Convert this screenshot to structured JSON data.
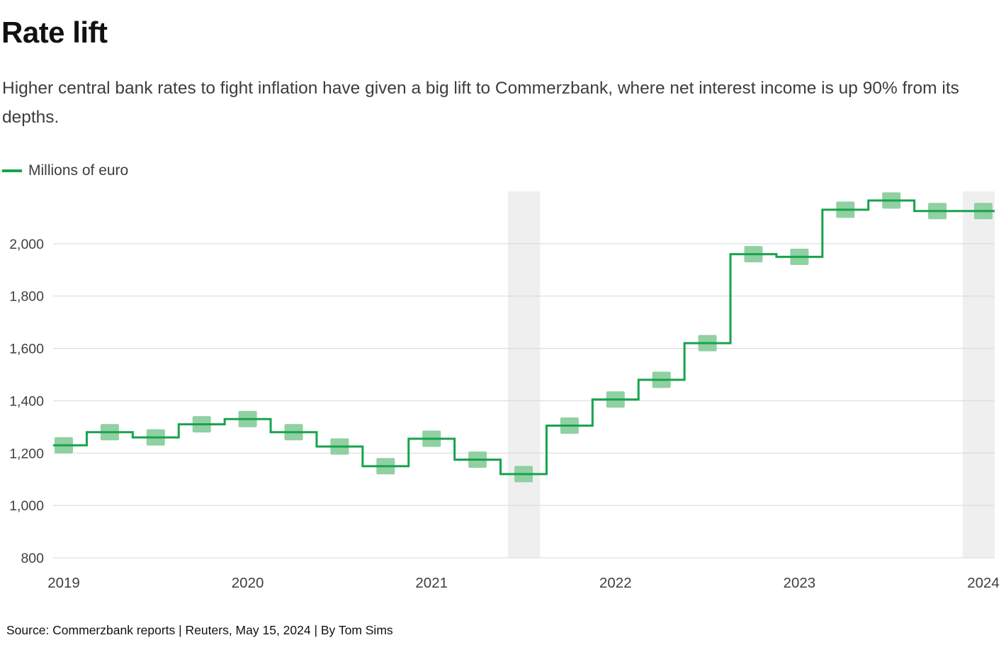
{
  "header": {
    "title": "Rate lift",
    "subtitle": "Higher central bank rates to fight inflation have given a big lift to Commerzbank, where net interest income is up 90% from its depths."
  },
  "legend": {
    "label": "Millions of euro"
  },
  "chart_data": {
    "type": "line",
    "step": true,
    "title": "Rate lift",
    "series_name": "Millions of euro",
    "x": [
      "2019 Q1",
      "2019 Q2",
      "2019 Q3",
      "2019 Q4",
      "2020 Q1",
      "2020 Q2",
      "2020 Q3",
      "2020 Q4",
      "2021 Q1",
      "2021 Q2",
      "2021 Q3",
      "2021 Q4",
      "2022 Q1",
      "2022 Q2",
      "2022 Q3",
      "2022 Q4",
      "2023 Q1",
      "2023 Q2",
      "2023 Q3",
      "2023 Q4",
      "2024 Q1"
    ],
    "values": [
      1230,
      1280,
      1260,
      1310,
      1330,
      1280,
      1225,
      1150,
      1255,
      1175,
      1120,
      1305,
      1405,
      1480,
      1620,
      1960,
      1950,
      2130,
      2165,
      2125,
      2125
    ],
    "ylim": [
      800,
      2200
    ],
    "yticks": [
      800,
      1000,
      1200,
      1400,
      1600,
      1800,
      2000
    ],
    "xticks": [
      {
        "label": "2019",
        "index": 0
      },
      {
        "label": "2020",
        "index": 4
      },
      {
        "label": "2021",
        "index": 8
      },
      {
        "label": "2022",
        "index": 12
      },
      {
        "label": "2023",
        "index": 16
      },
      {
        "label": "2024",
        "index": 20
      }
    ],
    "highlight_bands": [
      {
        "from": 9.66,
        "to": 10.36
      },
      {
        "from": 19.55,
        "to": 20.55
      }
    ],
    "grid": true,
    "legend_position": "top-left",
    "line_color": "#18a34d",
    "marker_color": "#90d0a2",
    "grid_color": "#d8d8d8",
    "band_color": "#efefef"
  },
  "footer": {
    "source": "Source: Commerzbank reports | Reuters, May 15, 2024 | By Tom Sims"
  }
}
